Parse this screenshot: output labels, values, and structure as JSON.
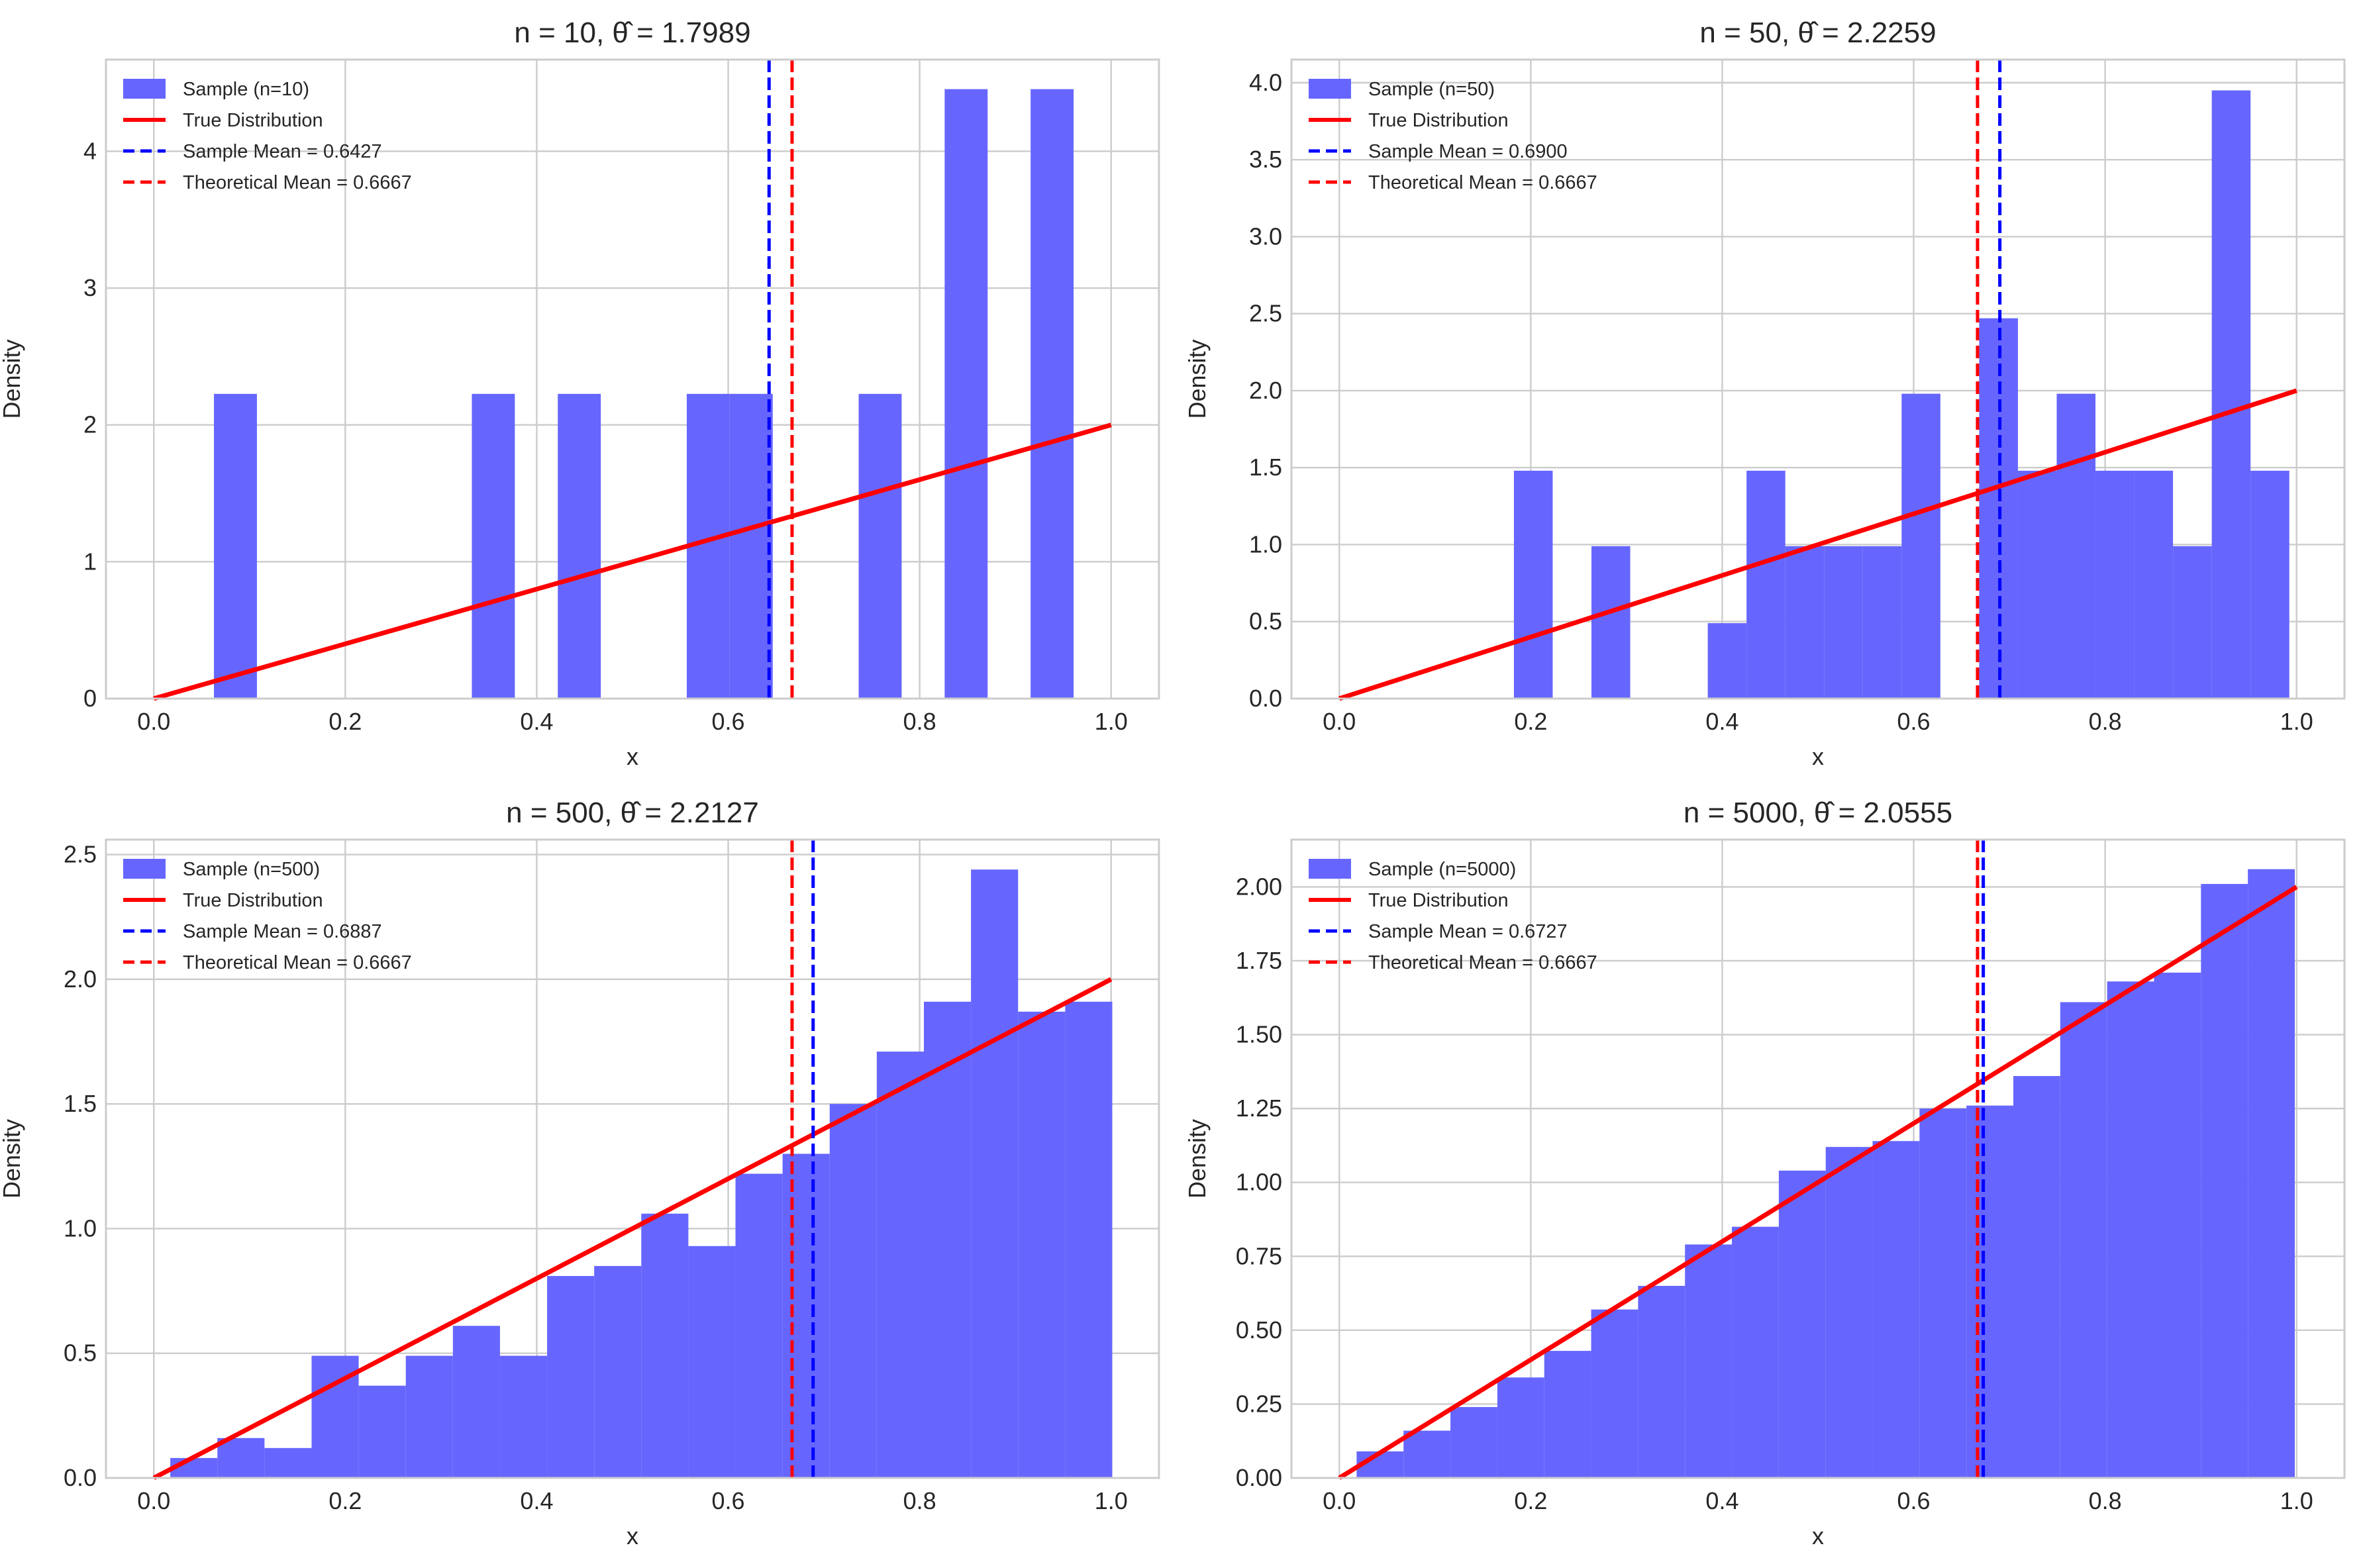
{
  "figure": {
    "background": "#ffffff",
    "grid_color": "#cccccc",
    "frame_color": "#cccccc"
  },
  "chart_data": [
    {
      "type": "bar",
      "title": "n = 10, θ̂ = 1.7989",
      "xlabel": "x",
      "ylabel": "Density",
      "xlim": [
        -0.05,
        1.05
      ],
      "ylim": [
        0,
        4.67
      ],
      "xticks": [
        0.0,
        0.2,
        0.4,
        0.6,
        0.8,
        1.0
      ],
      "xtick_labels": [
        "0.0",
        "0.2",
        "0.4",
        "0.6",
        "0.8",
        "1.0"
      ],
      "yticks": [
        0,
        1,
        2,
        3,
        4
      ],
      "ytick_labels": [
        "0",
        "1",
        "2",
        "3",
        "4"
      ],
      "grid": true,
      "legend_position": "top-left",
      "histogram": {
        "name": "Sample (n=10)",
        "color": "#6666ff",
        "bin_edges": [
          0.0628,
          0.1077,
          0.1526,
          0.1975,
          0.2424,
          0.2873,
          0.3322,
          0.3771,
          0.422,
          0.4669,
          0.5118,
          0.5567,
          0.6016,
          0.6465,
          0.6914,
          0.7363,
          0.7812,
          0.8261,
          0.871,
          0.9159,
          0.9608
        ],
        "values": [
          2.227,
          0,
          0,
          0,
          0,
          0,
          2.227,
          0,
          2.227,
          0,
          0,
          2.227,
          2.227,
          0,
          0,
          2.227,
          0,
          4.454,
          0,
          4.454
        ]
      },
      "true_distribution": {
        "name": "True Distribution",
        "color": "#ff0000",
        "x": [
          0.0,
          1.0
        ],
        "y": [
          0.0,
          2.0
        ]
      },
      "sample_mean": {
        "name": "Sample Mean = 0.6427",
        "value": 0.6427,
        "color": "#0000ff"
      },
      "theoretical_mean": {
        "name": "Theoretical Mean = 0.6667",
        "value": 0.6667,
        "color": "#ff0000"
      }
    },
    {
      "type": "bar",
      "title": "n = 50, θ̂ = 2.2259",
      "xlabel": "x",
      "ylabel": "Density",
      "xlim": [
        -0.05,
        1.05
      ],
      "ylim": [
        0,
        4.15
      ],
      "xticks": [
        0.0,
        0.2,
        0.4,
        0.6,
        0.8,
        1.0
      ],
      "xtick_labels": [
        "0.0",
        "0.2",
        "0.4",
        "0.6",
        "0.8",
        "1.0"
      ],
      "yticks": [
        0.0,
        0.5,
        1.0,
        1.5,
        2.0,
        2.5,
        3.0,
        3.5,
        4.0
      ],
      "ytick_labels": [
        "0.0",
        "0.5",
        "1.0",
        "1.5",
        "2.0",
        "2.5",
        "3.0",
        "3.5",
        "4.0"
      ],
      "grid": true,
      "legend_position": "top-left",
      "histogram": {
        "name": "Sample (n=50)",
        "color": "#6666ff",
        "bin_edges": [
          0.1824,
          0.2229,
          0.2634,
          0.3039,
          0.3444,
          0.3849,
          0.4254,
          0.4659,
          0.5064,
          0.5469,
          0.5874,
          0.6279,
          0.6684,
          0.7089,
          0.7494,
          0.7899,
          0.8304,
          0.8709,
          0.9114,
          0.9519,
          0.9924
        ],
        "values": [
          1.48,
          0,
          0.99,
          0,
          0,
          0.49,
          1.48,
          0.99,
          0.99,
          0.99,
          1.98,
          0,
          2.47,
          1.48,
          1.98,
          1.48,
          1.48,
          0.99,
          3.95,
          1.48
        ]
      },
      "true_distribution": {
        "name": "True Distribution",
        "color": "#ff0000",
        "x": [
          0.0,
          1.0
        ],
        "y": [
          0.0,
          2.0
        ]
      },
      "sample_mean": {
        "name": "Sample Mean = 0.6900",
        "value": 0.69,
        "color": "#0000ff"
      },
      "theoretical_mean": {
        "name": "Theoretical Mean = 0.6667",
        "value": 0.6667,
        "color": "#ff0000"
      }
    },
    {
      "type": "bar",
      "title": "n = 500, θ̂ = 2.2127",
      "xlabel": "x",
      "ylabel": "Density",
      "xlim": [
        -0.05,
        1.05
      ],
      "ylim": [
        0,
        2.56
      ],
      "xticks": [
        0.0,
        0.2,
        0.4,
        0.6,
        0.8,
        1.0
      ],
      "xtick_labels": [
        "0.0",
        "0.2",
        "0.4",
        "0.6",
        "0.8",
        "1.0"
      ],
      "yticks": [
        0.0,
        0.5,
        1.0,
        1.5,
        2.0,
        2.5
      ],
      "ytick_labels": [
        "0.0",
        "0.5",
        "1.0",
        "1.5",
        "2.0",
        "2.5"
      ],
      "grid": true,
      "legend_position": "top-left",
      "histogram": {
        "name": "Sample (n=500)",
        "color": "#6666ff",
        "bin_edges": [
          0.0172,
          0.0664,
          0.1156,
          0.1648,
          0.214,
          0.2632,
          0.3124,
          0.3616,
          0.4108,
          0.46,
          0.5092,
          0.5584,
          0.6076,
          0.6568,
          0.706,
          0.7552,
          0.8044,
          0.8536,
          0.9028,
          0.952,
          1.0012
        ],
        "values": [
          0.08,
          0.16,
          0.12,
          0.49,
          0.37,
          0.49,
          0.61,
          0.49,
          0.81,
          0.85,
          1.06,
          0.93,
          1.22,
          1.3,
          1.5,
          1.71,
          1.91,
          2.44,
          1.87,
          1.91
        ]
      },
      "true_distribution": {
        "name": "True Distribution",
        "color": "#ff0000",
        "x": [
          0.0,
          1.0
        ],
        "y": [
          0.0,
          2.0
        ]
      },
      "sample_mean": {
        "name": "Sample Mean = 0.6887",
        "value": 0.6887,
        "color": "#0000ff"
      },
      "theoretical_mean": {
        "name": "Theoretical Mean = 0.6667",
        "value": 0.6667,
        "color": "#ff0000"
      }
    },
    {
      "type": "bar",
      "title": "n = 5000, θ̂ = 2.0555",
      "xlabel": "x",
      "ylabel": "Density",
      "xlim": [
        -0.05,
        1.05
      ],
      "ylim": [
        0,
        2.16
      ],
      "xticks": [
        0.0,
        0.2,
        0.4,
        0.6,
        0.8,
        1.0
      ],
      "xtick_labels": [
        "0.0",
        "0.2",
        "0.4",
        "0.6",
        "0.8",
        "1.0"
      ],
      "yticks": [
        0.0,
        0.25,
        0.5,
        0.75,
        1.0,
        1.25,
        1.5,
        1.75,
        2.0
      ],
      "ytick_labels": [
        "0.00",
        "0.25",
        "0.50",
        "0.75",
        "1.00",
        "1.25",
        "1.50",
        "1.75",
        "2.00"
      ],
      "grid": true,
      "legend_position": "top-left",
      "histogram": {
        "name": "Sample (n=5000)",
        "color": "#6666ff",
        "bin_edges": [
          0.0181,
          0.0671,
          0.1161,
          0.1651,
          0.2141,
          0.2631,
          0.3121,
          0.3611,
          0.4101,
          0.4591,
          0.5081,
          0.5571,
          0.6061,
          0.6551,
          0.7041,
          0.7531,
          0.8021,
          0.8511,
          0.9001,
          0.9491,
          0.9981
        ],
        "values": [
          0.09,
          0.16,
          0.24,
          0.34,
          0.43,
          0.57,
          0.65,
          0.79,
          0.85,
          1.04,
          1.12,
          1.14,
          1.25,
          1.26,
          1.36,
          1.61,
          1.68,
          1.71,
          2.01,
          2.06
        ]
      },
      "true_distribution": {
        "name": "True Distribution",
        "color": "#ff0000",
        "x": [
          0.0,
          1.0
        ],
        "y": [
          0.0,
          2.0
        ]
      },
      "sample_mean": {
        "name": "Sample Mean = 0.6727",
        "value": 0.6727,
        "color": "#0000ff"
      },
      "theoretical_mean": {
        "name": "Theoretical Mean = 0.6667",
        "value": 0.6667,
        "color": "#ff0000"
      }
    }
  ]
}
